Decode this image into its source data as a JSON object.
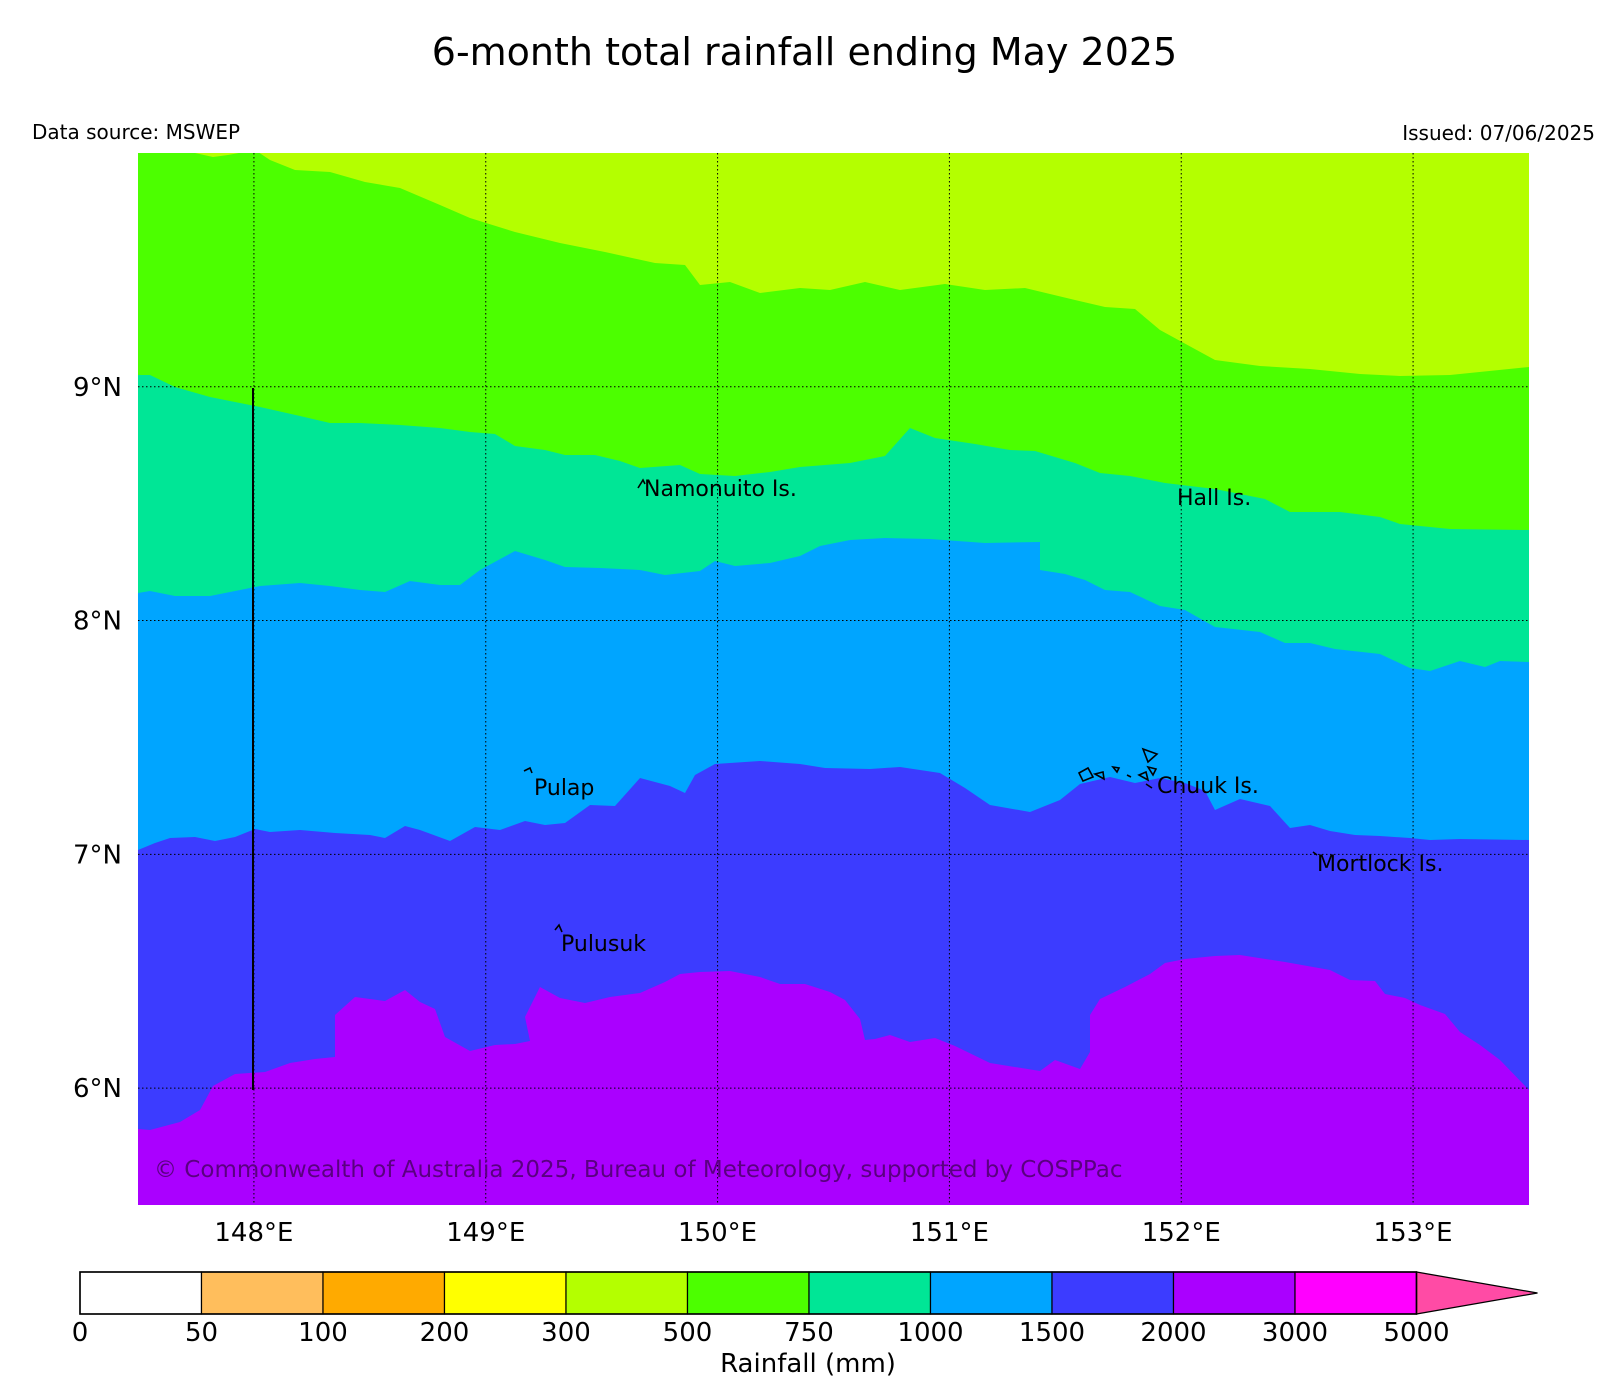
{
  "title": "6-month total rainfall ending May 2025",
  "data_source": "Data source: MSWEP",
  "issued": "Issued: 07/06/2025",
  "copyright": "© Commonwealth of Australia 2025, Bureau of Meteorology, supported by COSPPac",
  "map": {
    "lon_range": [
      147.5,
      153.5
    ],
    "lat_range": [
      5.5,
      10.0
    ],
    "lon_ticks": [
      148,
      149,
      150,
      151,
      152,
      153
    ],
    "lon_tick_labels": [
      "148°E",
      "149°E",
      "150°E",
      "151°E",
      "152°E",
      "153°E"
    ],
    "lat_ticks": [
      6,
      7,
      8,
      9
    ],
    "lat_tick_labels": [
      "6°N",
      "7°N",
      "8°N",
      "9°N"
    ],
    "gridlines": "dotted",
    "places": [
      {
        "name": "Namonuito Is.",
        "lon": 149.68,
        "lat": 8.55
      },
      {
        "name": "Hall Is.",
        "lon": 151.98,
        "lat": 8.5
      },
      {
        "name": "Pulap",
        "lon": 149.21,
        "lat": 7.27
      },
      {
        "name": "Chuuk Is.",
        "lon": 151.87,
        "lat": 7.28
      },
      {
        "name": "Mortlock Is.",
        "lon": 152.6,
        "lat": 6.93
      },
      {
        "name": "Pulusuk",
        "lon": 149.33,
        "lat": 6.6
      }
    ]
  },
  "legend": {
    "label": "Rainfall (mm)",
    "tick_labels": [
      "0",
      "50",
      "100",
      "200",
      "300",
      "500",
      "750",
      "1000",
      "1500",
      "2000",
      "3000",
      "5000"
    ],
    "colors": [
      "#ffffff",
      "#ffbe5c",
      "#ffaa00",
      "#ffff00",
      "#b4ff00",
      "#4cff00",
      "#00e696",
      "#00a5ff",
      "#3c3cff",
      "#aa00ff",
      "#ff00ff",
      "#ff4ba5"
    ],
    "extend": "max"
  }
}
